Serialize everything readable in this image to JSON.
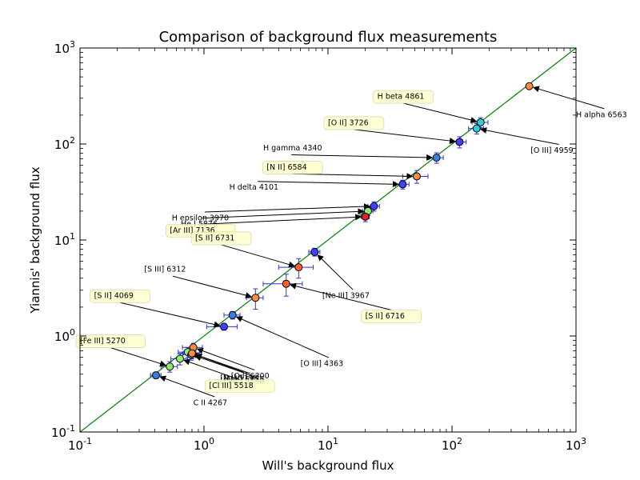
{
  "chart_data": {
    "type": "scatter",
    "title": "Comparison of background flux measurements",
    "xlabel": "Will's background flux",
    "ylabel": "Yiannis' background flux",
    "xscale": "log",
    "yscale": "log",
    "xlim": [
      0.1,
      1000
    ],
    "ylim": [
      0.1,
      1000
    ],
    "x_ticks": [
      {
        "base": "10",
        "exp": "-1",
        "value": 0.1
      },
      {
        "base": "10",
        "exp": "0",
        "value": 1
      },
      {
        "base": "10",
        "exp": "1",
        "value": 10
      },
      {
        "base": "10",
        "exp": "2",
        "value": 100
      },
      {
        "base": "10",
        "exp": "3",
        "value": 1000
      }
    ],
    "y_ticks": [
      {
        "base": "10",
        "exp": "-1",
        "value": 0.1
      },
      {
        "base": "10",
        "exp": "0",
        "value": 1
      },
      {
        "base": "10",
        "exp": "1",
        "value": 10
      },
      {
        "base": "10",
        "exp": "2",
        "value": 100
      },
      {
        "base": "10",
        "exp": "3",
        "value": 1000
      }
    ],
    "grid": false,
    "reference_line": {
      "type": "y=x",
      "color": "#008000"
    },
    "errorbar_color": "#3030e0",
    "points": [
      {
        "label": "H alpha 6563",
        "x": 420,
        "y": 400,
        "color": "#ff8c40",
        "xerr": 0,
        "yerr": 0
      },
      {
        "label": "H beta 4861",
        "x": 170,
        "y": 168,
        "color": "#30d0d0",
        "xerr": 25,
        "yerr": 20
      },
      {
        "label": "[O III] 4959",
        "x": 158,
        "y": 145,
        "color": "#30d0d0",
        "xerr": 22,
        "yerr": 18
      },
      {
        "label": "[O II] 3726",
        "x": 115,
        "y": 105,
        "color": "#4040ff",
        "xerr": 15,
        "yerr": 14
      },
      {
        "label": "H gamma 4340",
        "x": 75,
        "y": 72,
        "color": "#3a7fe0",
        "xerr": 10,
        "yerr": 9
      },
      {
        "label": "[N II] 6584",
        "x": 52,
        "y": 46,
        "color": "#ff8c40",
        "xerr": 12,
        "yerr": 7
      },
      {
        "label": "H delta 4101",
        "x": 40,
        "y": 38,
        "color": "#4040ff",
        "xerr": 5,
        "yerr": 4
      },
      {
        "label": "H epsilon 3970",
        "x": 23.5,
        "y": 22.5,
        "color": "#4040ff",
        "xerr": 2.5,
        "yerr": 2.5
      },
      {
        "label": "He I 5876",
        "x": 21,
        "y": 20,
        "color": "#90ee70",
        "xerr": 2,
        "yerr": 2
      },
      {
        "label": "[Ar III] 7136",
        "x": 20,
        "y": 17.5,
        "color": "#e82020",
        "xerr": 1.5,
        "yerr": 2
      },
      {
        "label": "[Ne III] 3967",
        "x": 7.8,
        "y": 7.5,
        "color": "#4040ff",
        "xerr": 0.8,
        "yerr": 0.7
      },
      {
        "label": "[S II] 6731",
        "x": 5.8,
        "y": 5.2,
        "color": "#ff6030",
        "xerr": 1.8,
        "yerr": 1.2
      },
      {
        "label": "[S II] 6716",
        "x": 4.6,
        "y": 3.5,
        "color": "#ff6030",
        "xerr": 1.6,
        "yerr": 0.9
      },
      {
        "label": "[S III] 6312",
        "x": 2.6,
        "y": 2.5,
        "color": "#ff8c40",
        "xerr": 0.4,
        "yerr": 0.6
      },
      {
        "label": "[O III] 4363",
        "x": 1.7,
        "y": 1.65,
        "color": "#3a7fe0",
        "xerr": 0.25,
        "yerr": 0.15
      },
      {
        "label": "[S II] 4069",
        "x": 1.45,
        "y": 1.25,
        "color": "#4040ff",
        "xerr": 0.4,
        "yerr": 0.1
      },
      {
        "label": "[O I] 6300",
        "x": 0.82,
        "y": 0.76,
        "color": "#ff8c40",
        "xerr": 0.15,
        "yerr": 0.08
      },
      {
        "label": "[N I] 5198",
        "x": 0.74,
        "y": 0.68,
        "color": "#90ee70",
        "xerr": 0.12,
        "yerr": 0.08
      },
      {
        "label": "[Cl III] 5538",
        "x": 0.79,
        "y": 0.64,
        "color": "#30d0d0",
        "xerr": 0.12,
        "yerr": 0.08
      },
      {
        "label": "[N II] 5755",
        "x": 0.8,
        "y": 0.66,
        "color": "#ff8c40",
        "xerr": 0.12,
        "yerr": 0.08
      },
      {
        "label": "[Cl III] 5518",
        "x": 0.64,
        "y": 0.58,
        "color": "#90ee70",
        "xerr": 0.1,
        "yerr": 0.08
      },
      {
        "label": "[Fe III] 5270",
        "x": 0.53,
        "y": 0.48,
        "color": "#90ee70",
        "xerr": 0.08,
        "yerr": 0.06
      },
      {
        "label": "C II 4267",
        "x": 0.41,
        "y": 0.39,
        "color": "#3a7fe0",
        "xerr": 0.04,
        "yerr": 0.03
      }
    ],
    "annotations": [
      {
        "text": "H alpha 6563",
        "tx": 2500,
        "ty": 200,
        "anchor": "start",
        "boxed": false
      },
      {
        "text": "H beta 4861",
        "tx": 25,
        "ty": 310,
        "anchor": "start",
        "boxed": true
      },
      {
        "text": "[O III] 4959",
        "tx": 430,
        "ty": 85,
        "anchor": "start",
        "boxed": false
      },
      {
        "text": "[O II] 3726",
        "tx": 10,
        "ty": 165,
        "anchor": "start",
        "boxed": true
      },
      {
        "text": "H gamma 4340",
        "tx": 3,
        "ty": 90,
        "anchor": "start",
        "boxed": false
      },
      {
        "text": "[N II] 6584",
        "tx": 3.2,
        "ty": 57,
        "anchor": "start",
        "boxed": true
      },
      {
        "text": "H delta 4101",
        "tx": 1.6,
        "ty": 35,
        "anchor": "start",
        "boxed": false
      },
      {
        "text": "H epsilon 3970",
        "tx": 0.55,
        "ty": 16.8,
        "anchor": "start",
        "boxed": false
      },
      {
        "text": "He I 5876",
        "tx": 0.65,
        "ty": 14.5,
        "anchor": "start",
        "boxed": false
      },
      {
        "text": "[Ar III] 7136",
        "tx": 0.53,
        "ty": 12.5,
        "anchor": "start",
        "boxed": true
      },
      {
        "text": "[Ne III] 3967",
        "tx": 9,
        "ty": 2.6,
        "anchor": "start",
        "boxed": false
      },
      {
        "text": "[S II] 6731",
        "tx": 0.85,
        "ty": 10.4,
        "anchor": "start",
        "boxed": true
      },
      {
        "text": "[S II] 6716",
        "tx": 20,
        "ty": 1.6,
        "anchor": "start",
        "boxed": true
      },
      {
        "text": "[S III] 6312",
        "tx": 0.33,
        "ty": 4.9,
        "anchor": "start",
        "boxed": false
      },
      {
        "text": "[O III] 4363",
        "tx": 6,
        "ty": 0.51,
        "anchor": "start",
        "boxed": false
      },
      {
        "text": "[S II] 4069",
        "tx": 0.13,
        "ty": 2.6,
        "anchor": "start",
        "boxed": true
      },
      {
        "text": "[O I] 6300",
        "tx": 1.65,
        "ty": 0.38,
        "anchor": "start",
        "boxed": false
      },
      {
        "text": "[N I] 5198",
        "tx": 1.35,
        "ty": 0.36,
        "anchor": "start",
        "boxed": false
      },
      {
        "text": "[Cl III] 5538",
        "tx": 1.35,
        "ty": 0.335,
        "anchor": "start",
        "boxed": false
      },
      {
        "text": "[N II] 5755",
        "tx": 1.45,
        "ty": 0.35,
        "anchor": "start",
        "boxed": false
      },
      {
        "text": "[Cl III] 5518",
        "tx": 1.1,
        "ty": 0.3,
        "anchor": "start",
        "boxed": true
      },
      {
        "text": "[Fe III] 5270",
        "tx": 0.033,
        "ty": 0.88,
        "anchor": "start",
        "boxed": true
      },
      {
        "text": "C II 4267",
        "tx": 0.82,
        "ty": 0.2,
        "anchor": "start",
        "boxed": false
      }
    ]
  }
}
